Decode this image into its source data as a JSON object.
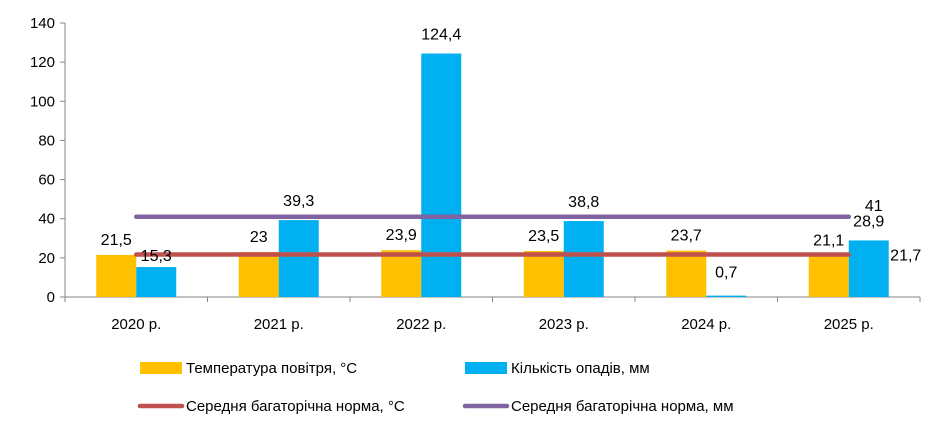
{
  "chart_data": {
    "type": "bar",
    "categories": [
      "2020 р.",
      "2021 р.",
      "2022 р.",
      "2023 р.",
      "2024 р.",
      "2025 р."
    ],
    "series": [
      {
        "name": "Температура повітря, °С",
        "kind": "bar",
        "color": "#FFC000",
        "values": [
          21.5,
          23,
          23.9,
          23.5,
          23.7,
          21.1
        ],
        "labels": [
          "21,5",
          "23",
          "23,9",
          "23,5",
          "23,7",
          "21,1"
        ]
      },
      {
        "name": "Кількість опадів, мм",
        "kind": "bar",
        "color": "#00B0F0",
        "values": [
          15.3,
          39.3,
          124.4,
          38.8,
          0.7,
          28.9
        ],
        "labels": [
          "15,3",
          "39,3",
          "124,4",
          "38,8",
          "0,7",
          "28,9"
        ]
      },
      {
        "name": "Середня багаторічна норма, °С",
        "kind": "line",
        "color": "#C0504D",
        "values": [
          21.7,
          21.7,
          21.7,
          21.7,
          21.7,
          21.7
        ],
        "end_label": "21,7"
      },
      {
        "name": "Середня багаторічна норма, мм",
        "kind": "line",
        "color": "#8064A2",
        "values": [
          41,
          41,
          41,
          41,
          41,
          41
        ],
        "end_label": "41"
      }
    ],
    "ylim": [
      0,
      140
    ],
    "yticks": [
      0,
      20,
      40,
      60,
      80,
      100,
      120,
      140
    ],
    "grid": false,
    "legend_position": "bottom"
  }
}
